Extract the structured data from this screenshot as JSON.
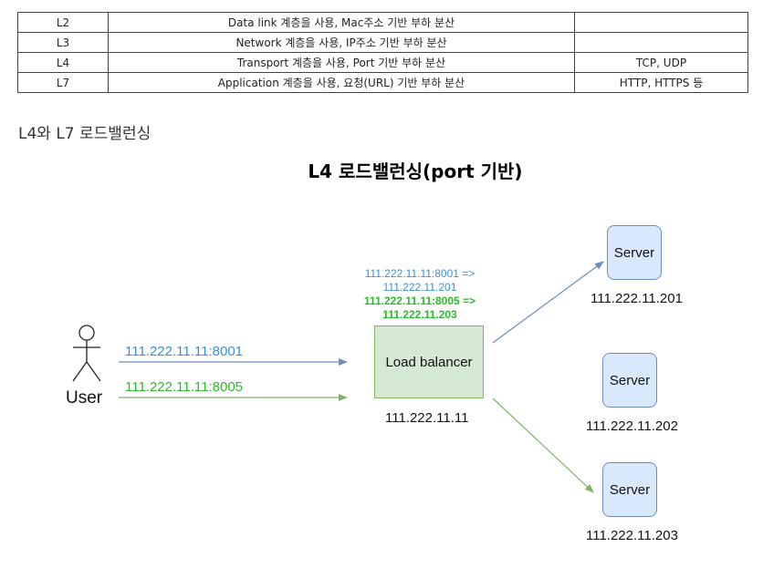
{
  "table": {
    "rows": [
      {
        "layer": "L2",
        "desc": "Data link 계층을 사용, Mac주소 기반 부하 분산",
        "protocols": ""
      },
      {
        "layer": "L3",
        "desc": "Network 계층을 사용, IP주소 기반 부하 분산",
        "protocols": ""
      },
      {
        "layer": "L4",
        "desc": "Transport 계층을 사용, Port 기반 부하 분산",
        "protocols": "TCP, UDP"
      },
      {
        "layer": "L7",
        "desc": "Application 계층을 사용, 요청(URL) 기반 부하 분산",
        "protocols": "HTTP, HTTPS 등"
      }
    ]
  },
  "section_heading": "L4와 L7 로드밸런싱",
  "diagram": {
    "title": "L4 로드밸런싱(port 기반)",
    "user_label": "User",
    "request_1": "111.222.11.11:8001",
    "request_2": "111.222.11.11:8005",
    "mapping_1_line1": "111.222.11.11:8001 =>",
    "mapping_1_line2": "111.222.11.201",
    "mapping_2_line1": "111.222.11.11:8005 =>",
    "mapping_2_line2": "111.222.11.203",
    "load_balancer_label": "Load balancer",
    "load_balancer_ip": "111.222.11.11",
    "servers": [
      {
        "label": "Server",
        "ip": "111.222.11.201"
      },
      {
        "label": "Server",
        "ip": "111.222.11.202"
      },
      {
        "label": "Server",
        "ip": "111.222.11.203"
      }
    ],
    "colors": {
      "blue": "#3a8fd8",
      "green": "#2eb82e",
      "blue_arrow": "#6c8ebf",
      "green_arrow": "#82b366"
    }
  }
}
